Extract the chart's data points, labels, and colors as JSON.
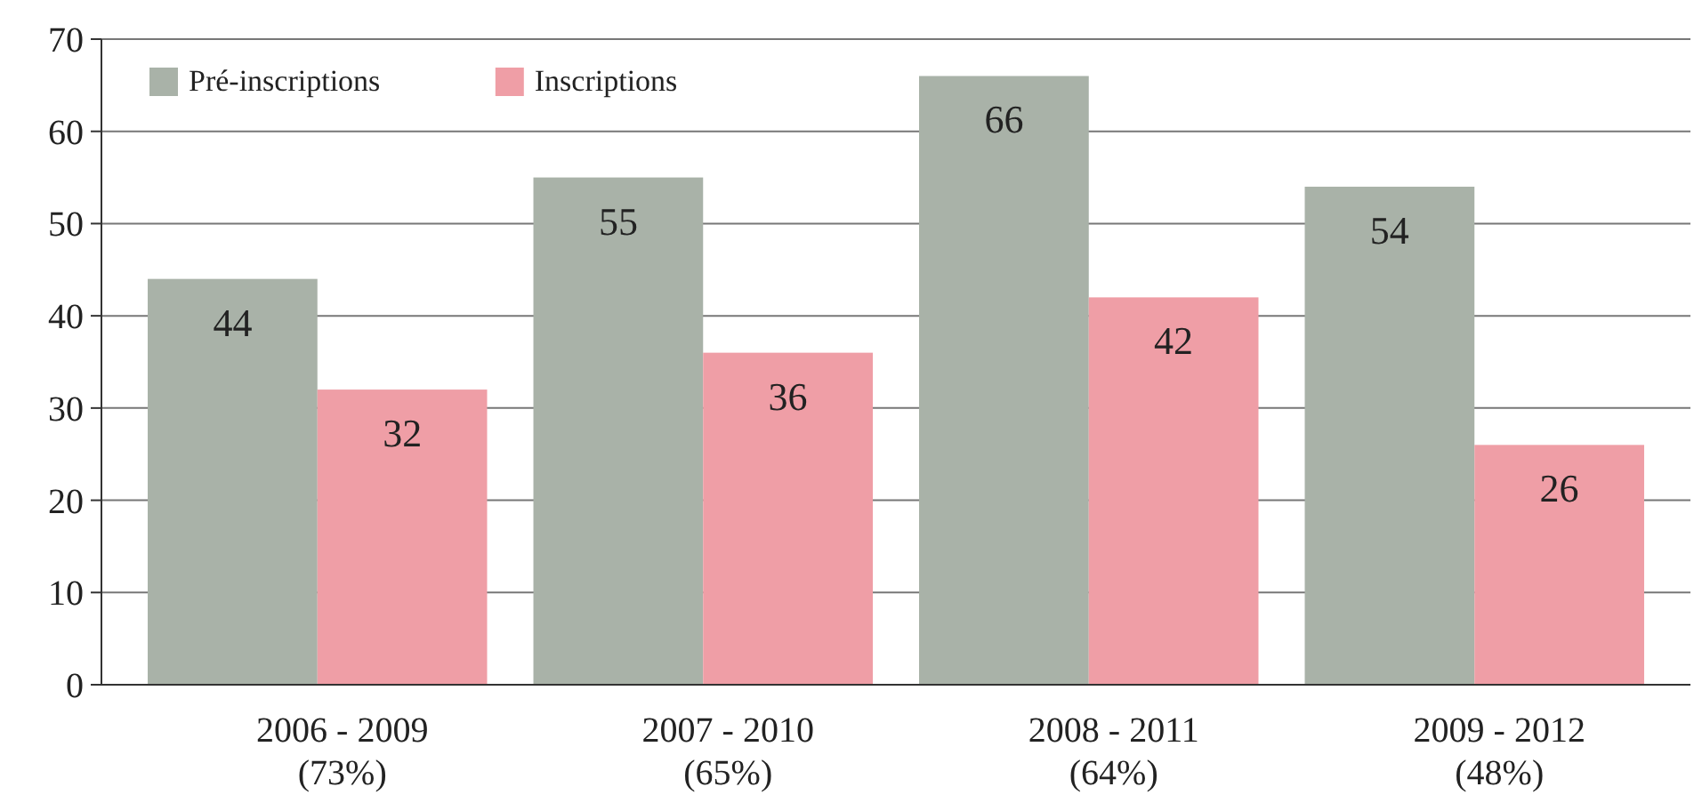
{
  "chart_data": {
    "type": "bar",
    "categories": [
      "2006 - 2009\n(73%)",
      "2007 - 2010\n(65%)",
      "2008 - 2011\n(64%)",
      "2009 - 2012\n(48%)"
    ],
    "series": [
      {
        "name": "Pré-inscriptions",
        "color": "#a9b2a8",
        "values": [
          44,
          55,
          66,
          54
        ]
      },
      {
        "name": "Inscriptions",
        "color": "#ef9ea6",
        "values": [
          32,
          36,
          42,
          26
        ]
      }
    ],
    "ylim": [
      0,
      70
    ],
    "yticks": [
      0,
      10,
      20,
      30,
      40,
      50,
      60,
      70
    ],
    "grid": "y",
    "legend": "top left",
    "data_labels": true
  }
}
